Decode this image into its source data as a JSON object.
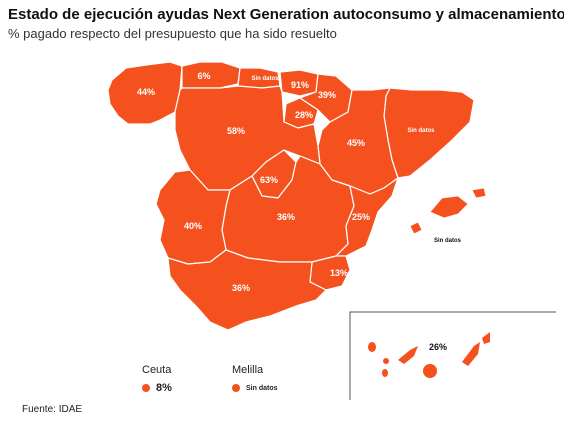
{
  "header": {
    "title": "Estado de ejecución ayudas Next Generation autoconsumo y almacenamiento",
    "subtitle": "% pagado respecto del presupuesto que ha sido resuelto"
  },
  "colors": {
    "region_fill": "#f4511e",
    "border": "#ffffff",
    "inset_frame": "#555555"
  },
  "regions": {
    "galicia": {
      "value": "44%"
    },
    "asturias": {
      "value": "6%"
    },
    "cantabria": {
      "value": "Sin datos"
    },
    "pais_vasco": {
      "value": "91%"
    },
    "navarra": {
      "value": "39%"
    },
    "la_rioja": {
      "value": "28%"
    },
    "cataluna": {
      "value": "Sin datos"
    },
    "aragon": {
      "value": "45%"
    },
    "castilla_leon": {
      "value": "58%"
    },
    "madrid": {
      "value": "63%"
    },
    "castilla_la_mancha": {
      "value": "36%"
    },
    "extremadura": {
      "value": "40%"
    },
    "valencia": {
      "value": "25%"
    },
    "murcia": {
      "value": "13%"
    },
    "andalucia": {
      "value": "36%"
    },
    "baleares": {
      "value": "Sin datos"
    },
    "canarias": {
      "value": "26%"
    }
  },
  "legend": {
    "ceuta": {
      "name": "Ceuta",
      "value": "8%"
    },
    "melilla": {
      "name": "Melilla",
      "value": "Sin datos"
    }
  },
  "source": "Fuente: IDAE"
}
